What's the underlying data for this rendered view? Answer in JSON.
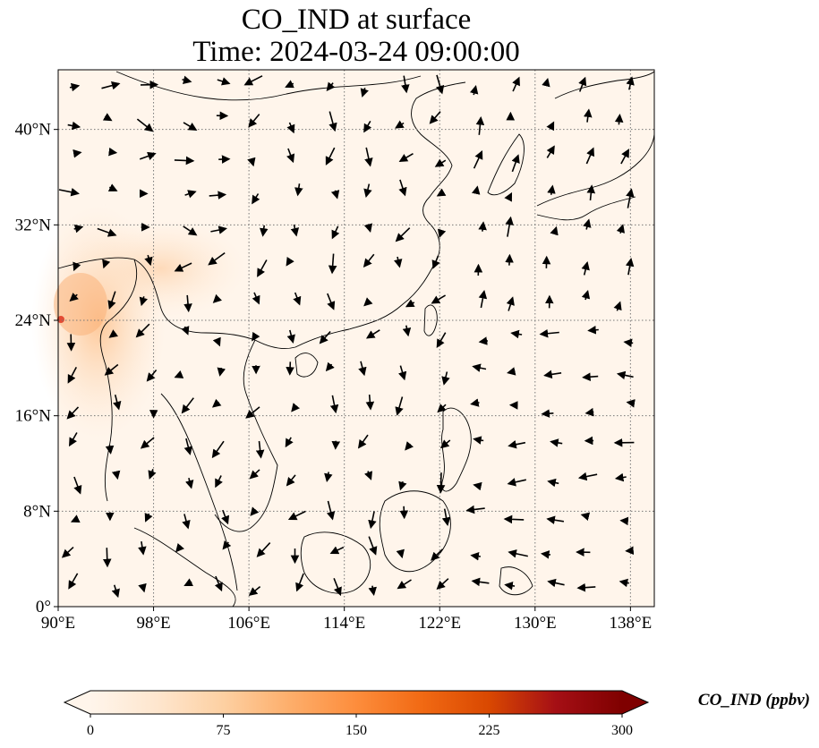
{
  "title": {
    "line1": "CO_IND at surface",
    "line2": "Time: 2024-03-24 09:00:00"
  },
  "map": {
    "extent": {
      "lon_min": 90,
      "lon_max": 140,
      "lat_min": 0,
      "lat_max": 45
    },
    "lon_ticks": [
      {
        "value": 90,
        "label": "90°E"
      },
      {
        "value": 98,
        "label": "98°E"
      },
      {
        "value": 106,
        "label": "106°E"
      },
      {
        "value": 114,
        "label": "114°E"
      },
      {
        "value": 122,
        "label": "122°E"
      },
      {
        "value": 130,
        "label": "130°E"
      },
      {
        "value": 138,
        "label": "138°E"
      }
    ],
    "lat_ticks": [
      {
        "value": 0,
        "label": "0°"
      },
      {
        "value": 8,
        "label": "8°N"
      },
      {
        "value": 16,
        "label": "16°N"
      },
      {
        "value": 24,
        "label": "24°N"
      },
      {
        "value": 32,
        "label": "32°N"
      },
      {
        "value": 40,
        "label": "40°N"
      }
    ],
    "gridlines": true,
    "background_color": "#fff5eb",
    "coastline_color": "#000000"
  },
  "colorbar": {
    "label": "CO_IND (ppbv)",
    "min": 0,
    "max": 300,
    "extend": "both",
    "ticks": [
      {
        "value": 0,
        "label": "0"
      },
      {
        "value": 75,
        "label": "75"
      },
      {
        "value": 150,
        "label": "150"
      },
      {
        "value": 225,
        "label": "225"
      },
      {
        "value": 300,
        "label": "300"
      }
    ],
    "colormap": "OrRd-like",
    "stops": [
      "#fff5eb",
      "#fee6ce",
      "#fdd0a2",
      "#fdae6b",
      "#fd8d3c",
      "#f16913",
      "#d94801",
      "#a50f15",
      "#7f0000"
    ]
  }
}
